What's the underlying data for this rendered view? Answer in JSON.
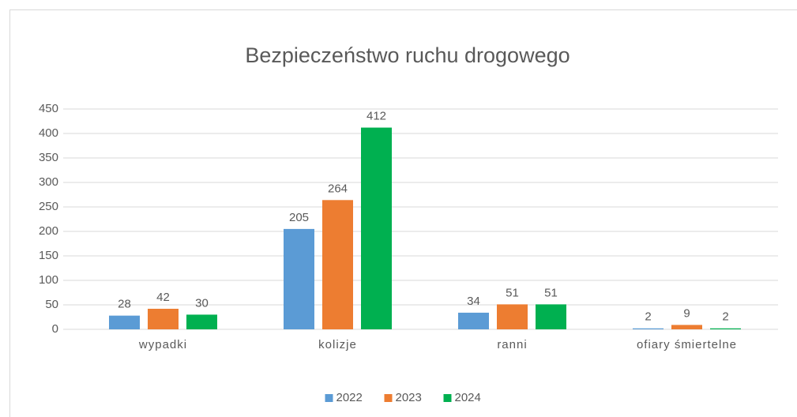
{
  "chart_data": {
    "type": "bar",
    "title": "Bezpieczeństwo ruchu drogowego",
    "categories": [
      "wypadki",
      "kolizje",
      "ranni",
      "ofiary śmiertelne"
    ],
    "series": [
      {
        "name": "2022",
        "color": "#5b9bd5",
        "values": [
          28,
          205,
          34,
          2
        ]
      },
      {
        "name": "2023",
        "color": "#ed7d31",
        "values": [
          42,
          264,
          51,
          9
        ]
      },
      {
        "name": "2024",
        "color": "#00b050",
        "values": [
          30,
          412,
          51,
          2
        ]
      }
    ],
    "ylim": [
      0,
      450
    ],
    "yticks": [
      0,
      50,
      100,
      150,
      200,
      250,
      300,
      350,
      400,
      450
    ],
    "grid": true,
    "legend": "bottom"
  }
}
